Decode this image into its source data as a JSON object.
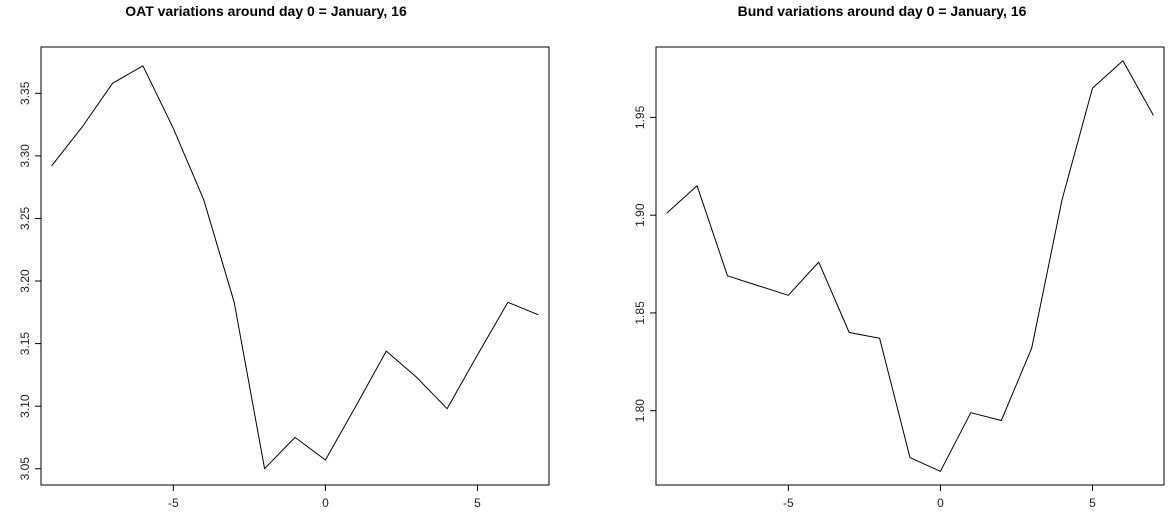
{
  "chart_data": [
    {
      "type": "line",
      "title": "OAT variations around day 0 = January, 16",
      "xlabel": "",
      "ylabel": "",
      "xlim": [
        -9.35,
        7.35
      ],
      "ylim": [
        3.037,
        3.387
      ],
      "x_ticks": [
        -5,
        0,
        5
      ],
      "x_tick_labels": [
        "-5",
        "0",
        "5"
      ],
      "y_ticks": [
        3.05,
        3.1,
        3.15,
        3.2,
        3.25,
        3.3,
        3.35
      ],
      "y_tick_labels": [
        "3.05",
        "3.10",
        "3.15",
        "3.20",
        "3.25",
        "3.30",
        "3.35"
      ],
      "grid": false,
      "series": [
        {
          "x": [
            -9,
            -8,
            -7,
            -6,
            -5,
            -4,
            -3,
            -2,
            -1,
            0,
            1,
            2,
            3,
            4,
            5,
            6,
            7
          ],
          "y": [
            3.292,
            3.323,
            3.358,
            3.372,
            3.322,
            3.265,
            3.183,
            3.05,
            3.075,
            3.057,
            3.1,
            3.144,
            3.123,
            3.098,
            3.141,
            3.183,
            3.173
          ]
        }
      ]
    },
    {
      "type": "line",
      "title": "Bund variations around day 0 = January, 16",
      "xlabel": "",
      "ylabel": "",
      "xlim": [
        -9.35,
        7.35
      ],
      "ylim": [
        1.762,
        1.986
      ],
      "x_ticks": [
        -5,
        0,
        5
      ],
      "x_tick_labels": [
        "-5",
        "0",
        "5"
      ],
      "y_ticks": [
        1.8,
        1.85,
        1.9,
        1.95
      ],
      "y_tick_labels": [
        "1.80",
        "1.85",
        "1.90",
        "1.95"
      ],
      "grid": false,
      "series": [
        {
          "x": [
            -9,
            -8,
            -7,
            -6,
            -5,
            -4,
            -3,
            -2,
            -1,
            0,
            1,
            2,
            3,
            4,
            5,
            6,
            7
          ],
          "y": [
            1.901,
            1.915,
            1.869,
            1.864,
            1.859,
            1.876,
            1.84,
            1.837,
            1.776,
            1.769,
            1.799,
            1.795,
            1.832,
            1.908,
            1.965,
            1.979,
            1.951
          ]
        }
      ]
    }
  ]
}
